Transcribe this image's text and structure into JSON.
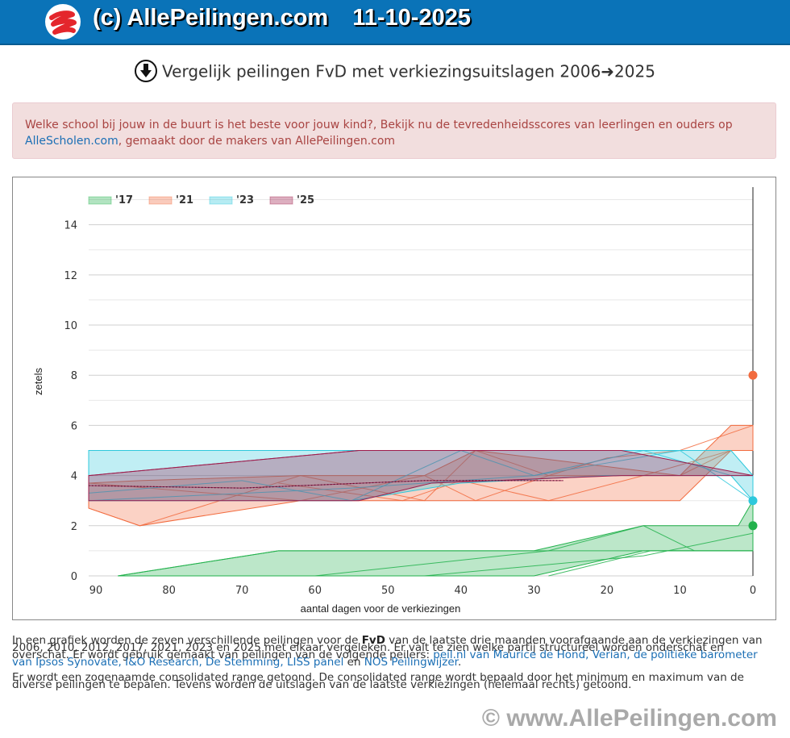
{
  "header": {
    "title": "(c) AllePeilingen.com",
    "date": "11-10-2025"
  },
  "page": {
    "title": "Vergelijk peilingen FvD met verkiezingsuitslagen 2006➜2025"
  },
  "alert": {
    "text_before": "Welke school bij jouw in de buurt is het beste voor jouw kind?, Bekijk nu de tevredenheidsscores van leerlingen en ouders op ",
    "link": "AlleScholen.com",
    "text_after": ", gemaakt door de makers van AllePeilingen.com"
  },
  "description": {
    "p1_a": "In een grafiek worden de zeven verschillende peilingen voor de ",
    "party": "FvD",
    "p1_b": " van de laatste drie maanden voorafgaande aan de verkiezingen van 2006, 2010, 2012, 2017, 2021, 2023 en 2025 met elkaar vergeleken. Er valt te zien welke partij structureel worden onderschat en overschat. Er wordt gebruik gemaakt van peilingen van de volgende peilers: ",
    "pollers": "peil.nl van Maurice de Hond, Verian, de politieke barometer van Ipsos Synovate, I&O Research, De Stemming, LISS panel",
    "p1_c": " en ",
    "nos": "NOS Peilingwijzer",
    "p1_d": ".",
    "p2": "Er wordt een zogenaamde consolidated range getoond. De consolidated range wordt bepaald door het minimum en maximum van de diverse peilingen te bepalen. Tevens worden de uitslagen van de laatste verkiezingen (helemaal rechts) getoond."
  },
  "footer": {
    "text": "© www.AllePeilingen.com"
  },
  "chart_data": {
    "type": "area",
    "xlabel": "aantal dagen voor de verkiezingen",
    "ylabel": "zetels",
    "xlim": [
      91,
      0
    ],
    "ylim": [
      0,
      15.5
    ],
    "x_ticks": [
      90,
      80,
      70,
      60,
      50,
      40,
      30,
      20,
      10,
      0
    ],
    "y_ticks": [
      0,
      2,
      4,
      6,
      8,
      10,
      12,
      14
    ],
    "grid": true,
    "legend_position": "top-left",
    "colors": {
      "17": "#22b14c",
      "21": "#f26b3e",
      "23": "#2ec8dc",
      "25": "#9e1b4b"
    },
    "series": [
      {
        "name": "'17",
        "key": "17",
        "range": {
          "x": [
            87,
            65,
            30,
            15,
            2,
            0
          ],
          "min": [
            0,
            0,
            0,
            1,
            1,
            1
          ],
          "max": [
            0,
            1,
            1,
            2,
            2,
            3
          ]
        },
        "polls": [
          [
            [
              87,
              0
            ],
            [
              65,
              1
            ],
            [
              27,
              1
            ],
            [
              12,
              1
            ],
            [
              0,
              1
            ]
          ],
          [
            [
              60,
              0
            ],
            [
              28,
              1
            ],
            [
              15,
              2
            ],
            [
              8,
              1
            ]
          ],
          [
            [
              45,
              0
            ],
            [
              15,
              0.8
            ],
            [
              0,
              1.7
            ]
          ],
          [
            [
              28,
              0
            ],
            [
              14,
              1
            ],
            [
              0,
              1
            ]
          ]
        ],
        "result": 2
      },
      {
        "name": "'21",
        "key": "21",
        "range": {
          "x": [
            91,
            84,
            62,
            45,
            38,
            10,
            3,
            0
          ],
          "min": [
            2.7,
            2,
            3,
            3,
            3,
            3,
            5,
            5
          ],
          "max": [
            3.7,
            3.8,
            4,
            4,
            5,
            4,
            6,
            6
          ]
        },
        "polls": [
          [
            [
              91,
              2.7
            ],
            [
              84,
              2
            ],
            [
              62,
              4
            ],
            [
              45,
              3
            ],
            [
              38,
              5
            ],
            [
              28,
              4
            ],
            [
              10,
              4
            ],
            [
              3,
              5
            ],
            [
              0,
              5
            ]
          ],
          [
            [
              91,
              3.7
            ],
            [
              62,
              3
            ],
            [
              45,
              4
            ],
            [
              38,
              3
            ],
            [
              28,
              4
            ],
            [
              20,
              4.7
            ],
            [
              10,
              5
            ],
            [
              0,
              6
            ]
          ],
          [
            [
              65,
              3.7
            ],
            [
              48,
              3
            ],
            [
              40,
              3.8
            ],
            [
              28,
              3
            ],
            [
              15,
              4
            ],
            [
              3,
              5
            ],
            [
              0,
              5
            ]
          ]
        ],
        "result": 8
      },
      {
        "name": "'23",
        "key": "23",
        "range": {
          "x": [
            91,
            55,
            40,
            20,
            3,
            0
          ],
          "min": [
            3,
            3,
            3.7,
            4,
            4,
            3
          ],
          "max": [
            5,
            5,
            5,
            5,
            5,
            4
          ]
        },
        "polls": [
          [
            [
              91,
              3.3
            ],
            [
              70,
              3.8
            ],
            [
              55,
              3
            ],
            [
              40,
              5
            ],
            [
              30,
              4
            ],
            [
              20,
              4.5
            ],
            [
              10,
              5
            ],
            [
              0,
              3
            ]
          ],
          [
            [
              91,
              3
            ],
            [
              55,
              3.5
            ],
            [
              30,
              4
            ],
            [
              15,
              5
            ],
            [
              3,
              4
            ],
            [
              0,
              4
            ]
          ]
        ],
        "result": 3
      },
      {
        "name": "'25",
        "key": "25",
        "range": {
          "x": [
            91,
            54,
            44,
            18,
            0
          ],
          "min": [
            3,
            3,
            3.7,
            4,
            4
          ],
          "max": [
            4,
            5,
            5,
            5,
            4
          ]
        },
        "polls": [
          [
            [
              91,
              3.6
            ],
            [
              70,
              3.5
            ],
            [
              45,
              3.8
            ],
            [
              26,
              3.8
            ]
          ],
          [
            [
              91,
              4
            ],
            [
              54,
              5
            ],
            [
              18,
              5
            ]
          ]
        ]
      }
    ]
  }
}
